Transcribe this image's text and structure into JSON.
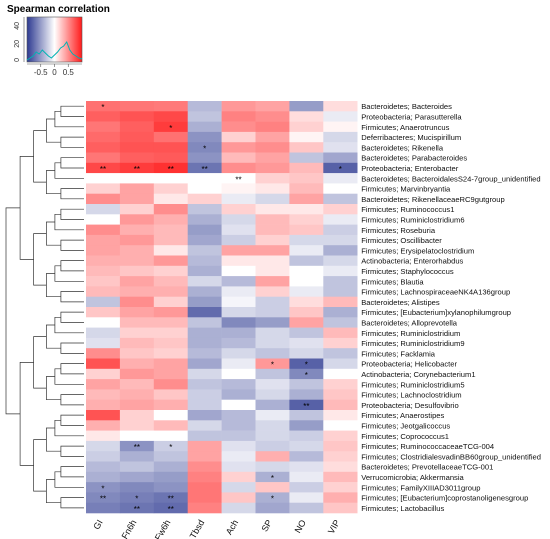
{
  "chart_data": {
    "type": "heatmap",
    "title": "",
    "legend": {
      "title": "Spearman correlation",
      "hist_ticks": [
        "0",
        "20",
        "40"
      ],
      "scale_ticks": [
        "-0.5",
        "0",
        "0.5"
      ],
      "color_low": "#2d3a91",
      "color_mid": "#ffffff",
      "color_high": "#ff1a1a"
    },
    "columns": [
      "GI",
      "Fn6h",
      "Fw6h",
      "Tbsd",
      "Ach",
      "SP",
      "NO",
      "VIP"
    ],
    "rows": [
      "Bacteroidetes; Bacteroides",
      "Proteobacteria; Parasutterella",
      "Firmicutes; Anaerotruncus",
      "Deferribacteres; Mucispirillum",
      "Bacteroidetes; Rikenella",
      "Bacteroidetes; Parabacteroides",
      "Proteobacteria; Enterobacter",
      "Bacteroidetes; BacteroidalesS24-7group_unidentified",
      "Firmicutes; Marvinbryantia",
      "Bacteroidetes; RikenellaceaeRC9gutgroup",
      "Firmicutes; Ruminococcus1",
      "Firmicutes; Ruminiclostridium6",
      "Firmicutes; Roseburia",
      "Firmicutes; Oscillibacter",
      "Firmicutes; Erysipelatoclostridium",
      "Actinobacteria; Enterorhabdus",
      "Firmicutes; Staphylococcus",
      "Firmicutes; Blautia",
      "Firmicutes; LachnospiraceaeNK4A136group",
      "Bacteroidetes; Alistipes",
      "Firmicutes; [Eubacterium]xylanophilumgroup",
      "Bacteroidetes; Alloprevotella",
      "Firmicutes; Ruminiclostridium",
      "Firmicutes; Ruminiclostridium9",
      "Firmicutes; Facklamia",
      "Proteobacteria; Helicobacter",
      "Actinobacteria; Corynebacterium1",
      "Firmicutes; Ruminiclostridium5",
      "Firmicutes; Lachnoclostridium",
      "Proteobacteria; Desulfovibrio",
      "Firmicutes; Anaerostipes",
      "Firmicutes; Jeotgalicoccus",
      "Firmicutes; Coprococcus1",
      "Firmicutes; RuminococcaceaeTCG-004",
      "Firmicutes; ClostridialesvadinBB60group_unidentified",
      "Bacteroidetes; PrevotellaceaeTCG-001",
      "Verrucomicrobia; Akkermansia",
      "Firmicutes; FamilyXIIIAD3011group",
      "Firmicutes; [Eubacterium]coprostanoligenesgroup",
      "Firmicutes; Lactobacillus"
    ],
    "values": [
      [
        0.62,
        0.6,
        0.58,
        -0.35,
        0.45,
        0.4,
        -0.5,
        0.15
      ],
      [
        0.7,
        0.75,
        0.8,
        -0.3,
        0.55,
        0.5,
        0.15,
        -0.1
      ],
      [
        0.6,
        0.7,
        0.85,
        -0.4,
        0.5,
        0.55,
        0.2,
        0.05
      ],
      [
        0.65,
        0.72,
        0.62,
        -0.55,
        0.2,
        0.4,
        0.05,
        -0.2
      ],
      [
        0.7,
        0.75,
        0.75,
        -0.6,
        0.45,
        0.5,
        0.25,
        -0.15
      ],
      [
        0.6,
        0.7,
        0.72,
        -0.55,
        0.3,
        0.4,
        -0.3,
        -0.45
      ],
      [
        0.8,
        0.85,
        0.9,
        -0.7,
        0.5,
        0.45,
        0.3,
        -0.8
      ],
      [
        0.0,
        0.0,
        0.0,
        0.0,
        0.0,
        0.2,
        0.25,
        -0.1
      ],
      [
        0.2,
        0.4,
        0.2,
        0.0,
        0.05,
        0.1,
        0.3,
        0.0
      ],
      [
        0.5,
        0.4,
        0.1,
        0.2,
        -0.1,
        -0.2,
        0.4,
        -0.3
      ],
      [
        -0.2,
        0.2,
        0.5,
        -0.3,
        0.2,
        0.1,
        0.1,
        0.2
      ],
      [
        0.0,
        0.45,
        0.35,
        -0.4,
        -0.2,
        0.3,
        0.2,
        -0.1
      ],
      [
        0.5,
        0.35,
        0.3,
        -0.5,
        -0.15,
        0.3,
        0.25,
        -0.25
      ],
      [
        0.4,
        0.45,
        0.3,
        -0.45,
        -0.25,
        0.2,
        -0.2,
        -0.2
      ],
      [
        0.4,
        0.35,
        0.1,
        -0.3,
        0.4,
        0.4,
        -0.1,
        -0.4
      ],
      [
        0.35,
        0.35,
        0.45,
        -0.35,
        0.1,
        0.1,
        -0.3,
        -0.2
      ],
      [
        0.3,
        0.25,
        0.2,
        -0.4,
        0.0,
        0.1,
        0.0,
        -0.1
      ],
      [
        0.25,
        0.4,
        0.3,
        -0.2,
        -0.35,
        0.4,
        0.0,
        -0.3
      ],
      [
        0.3,
        0.35,
        0.35,
        -0.4,
        -0.1,
        0.2,
        -0.1,
        -0.3
      ],
      [
        -0.3,
        0.5,
        0.2,
        -0.5,
        -0.05,
        -0.25,
        0.15,
        0.3
      ],
      [
        0.25,
        0.4,
        0.45,
        -0.75,
        -0.2,
        -0.25,
        0.25,
        -0.4
      ],
      [
        0.0,
        0.3,
        0.3,
        -0.3,
        -0.6,
        -0.5,
        0.4,
        -0.3
      ],
      [
        -0.2,
        0.2,
        0.2,
        -0.4,
        -0.4,
        -0.2,
        -0.3,
        0.3
      ],
      [
        -0.15,
        0.3,
        0.25,
        -0.4,
        -0.35,
        -0.2,
        -0.15,
        0.2
      ],
      [
        0.5,
        0.25,
        0.2,
        -0.35,
        -0.2,
        -0.3,
        -0.2,
        -0.3
      ],
      [
        0.75,
        0.35,
        0.4,
        -0.45,
        -0.1,
        0.45,
        -0.8,
        -0.2
      ],
      [
        0.2,
        0.45,
        0.4,
        -0.2,
        0.0,
        -0.3,
        -0.6,
        0.0
      ],
      [
        0.4,
        0.3,
        0.5,
        -0.3,
        -0.35,
        -0.15,
        -0.3,
        0.2
      ],
      [
        0.3,
        0.35,
        0.25,
        -0.25,
        -0.4,
        -0.2,
        -0.4,
        0.25
      ],
      [
        0.35,
        0.4,
        0.35,
        -0.25,
        0.0,
        -0.4,
        -0.8,
        0.3
      ],
      [
        0.75,
        0.2,
        0.0,
        -0.45,
        -0.35,
        -0.1,
        -0.3,
        0.1
      ],
      [
        0.35,
        0.2,
        0.3,
        -0.2,
        -0.35,
        -0.2,
        -0.5,
        0.0
      ],
      [
        0.1,
        0.0,
        0.0,
        -0.3,
        -0.3,
        -0.2,
        -0.25,
        0.2
      ],
      [
        -0.2,
        -0.55,
        -0.25,
        0.4,
        -0.15,
        -0.25,
        -0.2,
        0.25
      ],
      [
        -0.25,
        -0.4,
        -0.3,
        0.4,
        -0.1,
        0.35,
        -0.35,
        0.2
      ],
      [
        -0.35,
        -0.3,
        -0.4,
        0.5,
        -0.15,
        -0.2,
        -0.15,
        0.15
      ],
      [
        -0.4,
        -0.45,
        -0.5,
        0.55,
        0.2,
        -0.4,
        -0.1,
        0.3
      ],
      [
        -0.55,
        -0.6,
        -0.55,
        0.6,
        -0.2,
        0.25,
        -0.25,
        0.2
      ],
      [
        -0.6,
        -0.65,
        -0.7,
        0.6,
        0.25,
        -0.4,
        -0.1,
        0.35
      ],
      [
        -0.65,
        -0.7,
        -0.75,
        0.55,
        -0.2,
        -0.45,
        -0.3,
        0.25
      ]
    ],
    "significance": [
      [
        "*",
        "",
        "",
        "",
        "",
        "",
        "",
        ""
      ],
      [
        "",
        "",
        "",
        "",
        "",
        "",
        "",
        ""
      ],
      [
        "",
        "",
        "*",
        "",
        "",
        "",
        "",
        ""
      ],
      [
        "",
        "",
        "",
        "",
        "",
        "",
        "",
        ""
      ],
      [
        "",
        "",
        "",
        "*",
        "",
        "",
        "",
        ""
      ],
      [
        "",
        "",
        "",
        "",
        "",
        "",
        "",
        ""
      ],
      [
        "**",
        "**",
        "**",
        "**",
        "",
        "",
        "",
        "*"
      ],
      [
        "",
        "",
        "",
        "",
        "**",
        "",
        "",
        ""
      ],
      [
        "",
        "",
        "",
        "",
        "",
        "",
        "",
        ""
      ],
      [
        "",
        "",
        "",
        "",
        "",
        "",
        "",
        ""
      ],
      [
        "",
        "",
        "",
        "",
        "",
        "",
        "",
        ""
      ],
      [
        "",
        "",
        "",
        "",
        "",
        "",
        "",
        ""
      ],
      [
        "",
        "",
        "",
        "",
        "",
        "",
        "",
        ""
      ],
      [
        "",
        "",
        "",
        "",
        "",
        "",
        "",
        ""
      ],
      [
        "",
        "",
        "",
        "",
        "",
        "",
        "",
        ""
      ],
      [
        "",
        "",
        "",
        "",
        "",
        "",
        "",
        ""
      ],
      [
        "",
        "",
        "",
        "",
        "",
        "",
        "",
        ""
      ],
      [
        "",
        "",
        "",
        "",
        "",
        "",
        "",
        ""
      ],
      [
        "",
        "",
        "",
        "",
        "",
        "",
        "",
        ""
      ],
      [
        "",
        "",
        "",
        "",
        "",
        "",
        "",
        ""
      ],
      [
        "",
        "",
        "",
        "",
        "",
        "",
        "",
        ""
      ],
      [
        "",
        "",
        "",
        "",
        "",
        "",
        "",
        ""
      ],
      [
        "",
        "",
        "",
        "",
        "",
        "",
        "",
        ""
      ],
      [
        "",
        "",
        "",
        "",
        "",
        "",
        "",
        ""
      ],
      [
        "",
        "",
        "",
        "",
        "",
        "",
        "",
        ""
      ],
      [
        "",
        "",
        "",
        "",
        "",
        "*",
        "*",
        ""
      ],
      [
        "",
        "",
        "",
        "",
        "",
        "",
        "*",
        ""
      ],
      [
        "",
        "",
        "",
        "",
        "",
        "",
        "",
        ""
      ],
      [
        "",
        "",
        "",
        "",
        "",
        "",
        "",
        ""
      ],
      [
        "",
        "",
        "",
        "",
        "",
        "",
        "**",
        ""
      ],
      [
        "",
        "",
        "",
        "",
        "",
        "",
        "",
        ""
      ],
      [
        "",
        "",
        "",
        "",
        "",
        "",
        "",
        ""
      ],
      [
        "",
        "",
        "",
        "",
        "",
        "",
        "",
        ""
      ],
      [
        "",
        "**",
        "*",
        "",
        "",
        "",
        "",
        ""
      ],
      [
        "",
        "",
        "",
        "",
        "",
        "",
        "",
        ""
      ],
      [
        "",
        "",
        "",
        "",
        "",
        "",
        "",
        ""
      ],
      [
        "",
        "",
        "",
        "",
        "",
        "*",
        "",
        ""
      ],
      [
        "*",
        "",
        "",
        "",
        "",
        "",
        "",
        ""
      ],
      [
        "**",
        "*",
        "**",
        "",
        "",
        "*",
        "",
        ""
      ],
      [
        "",
        "**",
        "**",
        "",
        "",
        "",
        "",
        ""
      ]
    ],
    "grid": false
  }
}
